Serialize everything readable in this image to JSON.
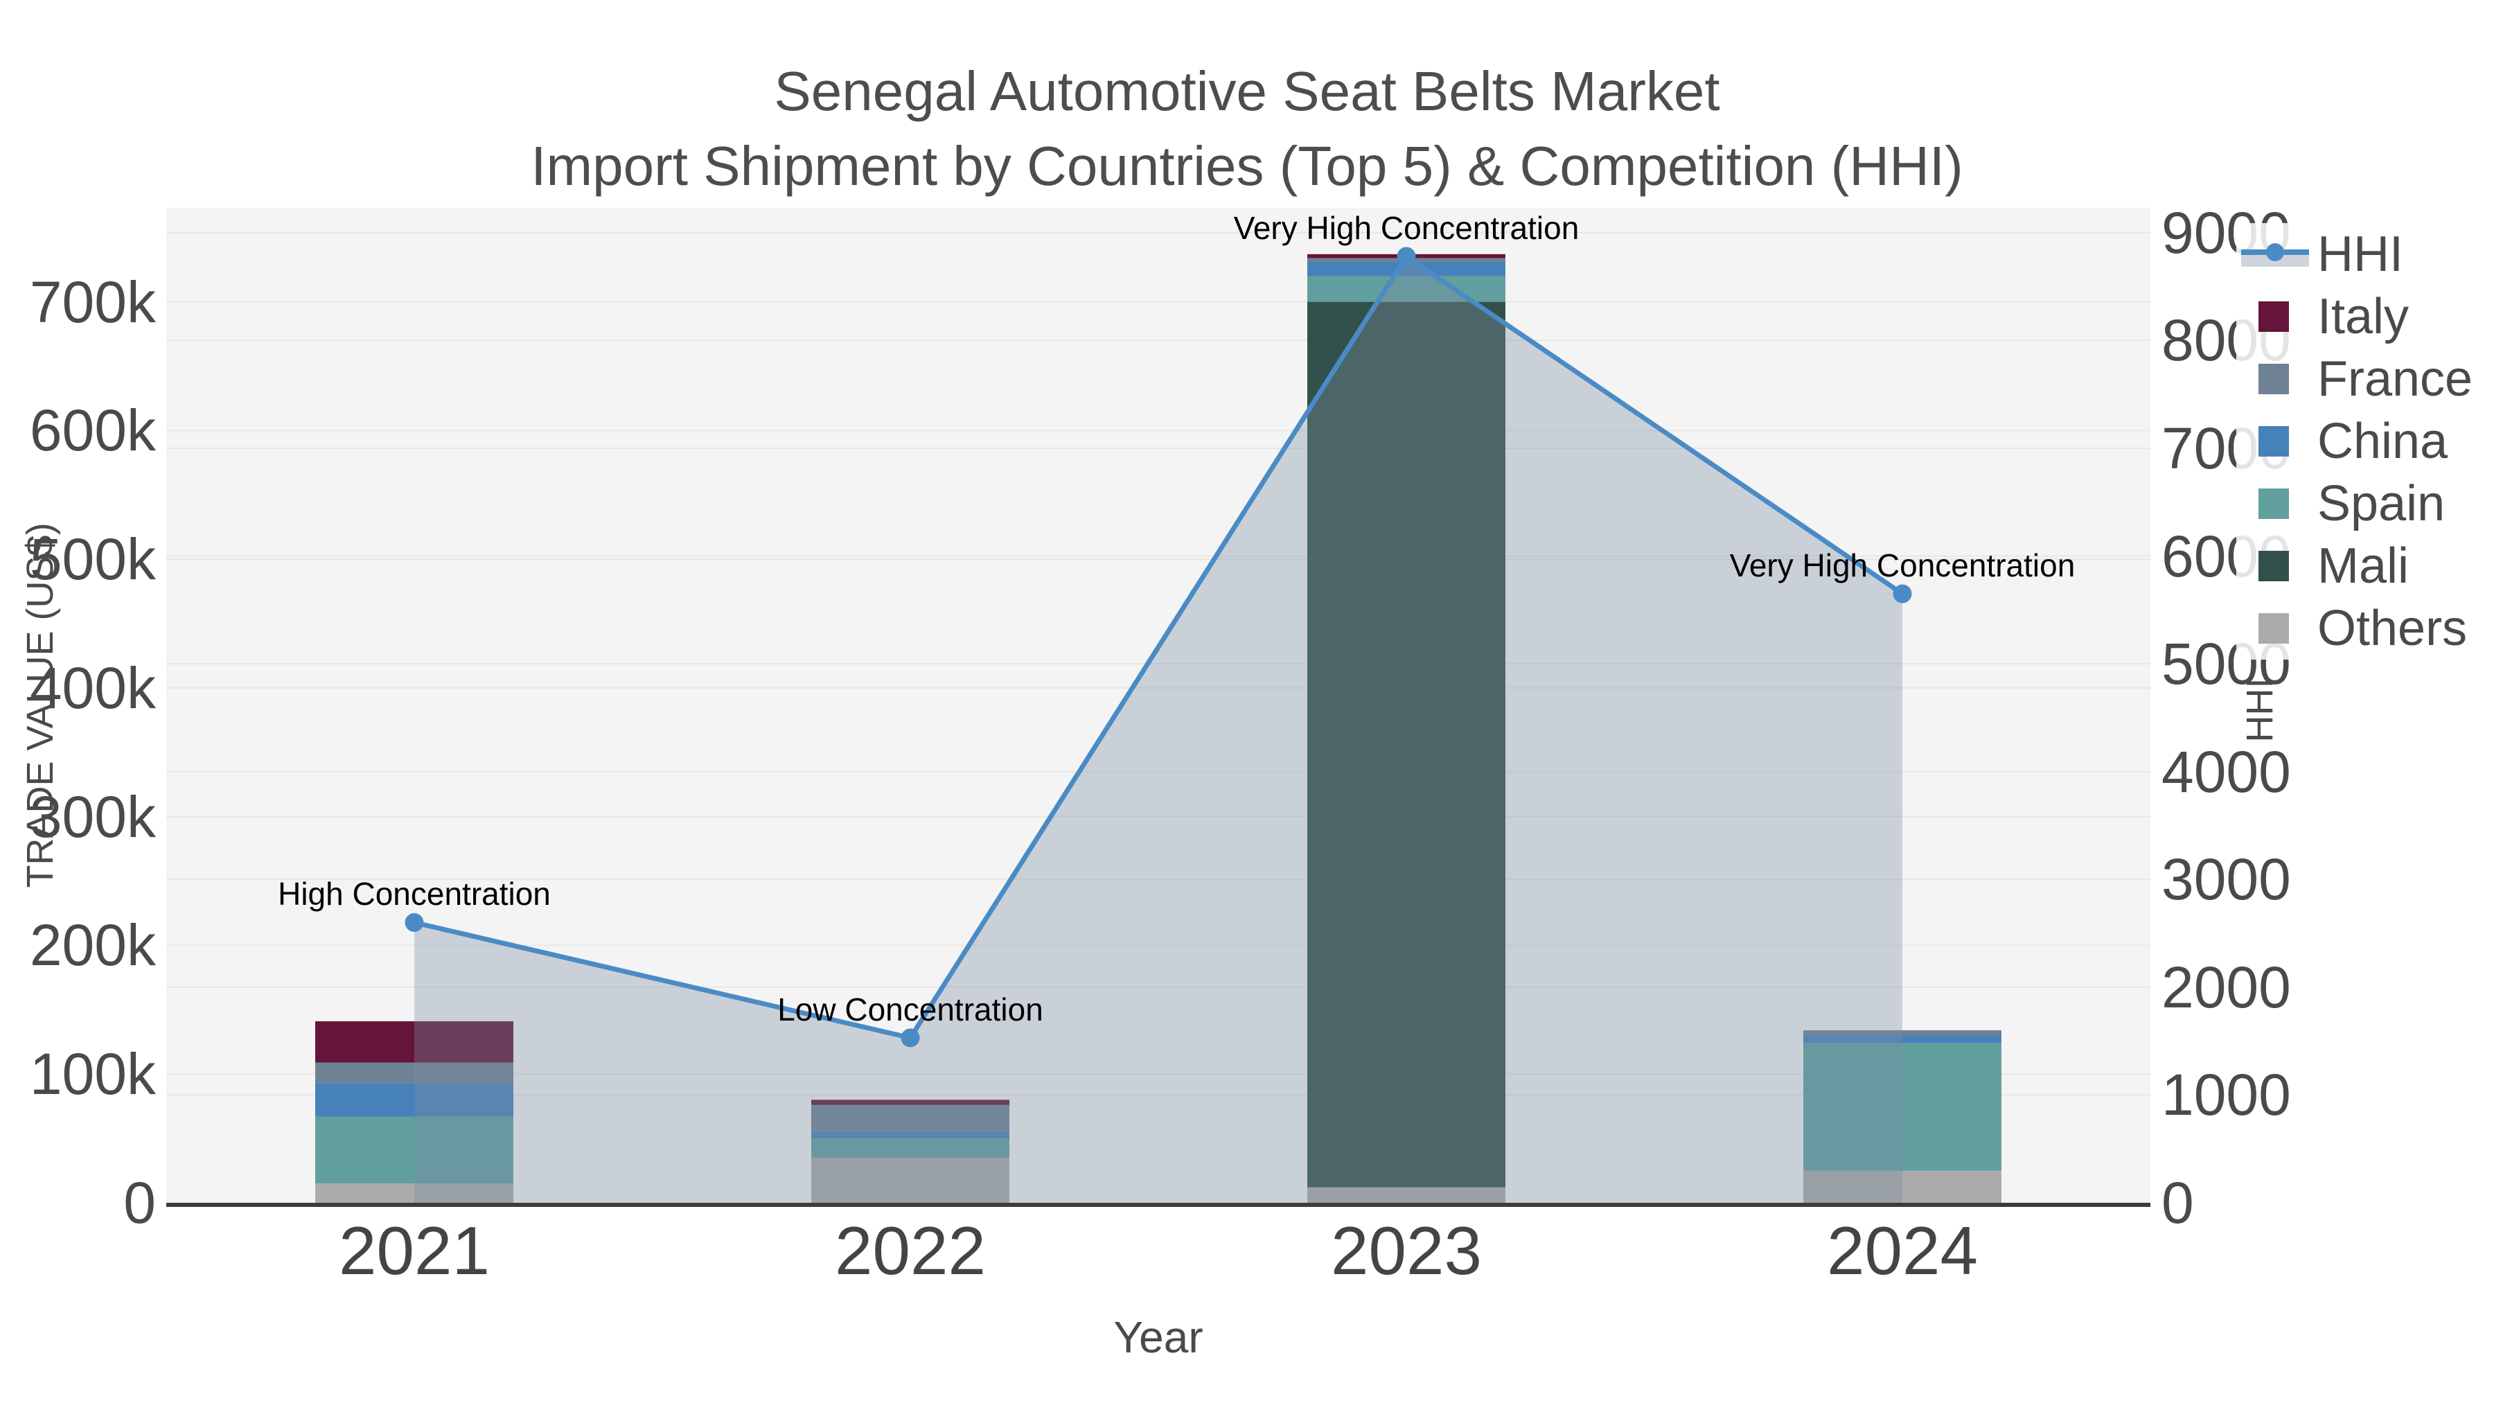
{
  "title": {
    "line1": "Senegal Automotive Seat Belts Market",
    "line2": "Import Shipment by Countries (Top 5) & Competition (HHI)"
  },
  "chart_data": {
    "type": "bar",
    "subtype": "stacked-bars-with-line-area-overlay",
    "categories": [
      "2021",
      "2022",
      "2023",
      "2024"
    ],
    "series": [
      {
        "name": "Italy",
        "color": "#65143A",
        "values": [
          32000,
          4000,
          3000,
          0
        ]
      },
      {
        "name": "France",
        "color": "#6E8294",
        "values": [
          16000,
          21000,
          3000,
          4000
        ]
      },
      {
        "name": "China",
        "color": "#4682B9",
        "values": [
          26000,
          5000,
          11000,
          6000
        ]
      },
      {
        "name": "Spain",
        "color": "#629F9F",
        "values": [
          52000,
          15000,
          20000,
          99000
        ]
      },
      {
        "name": "Mali",
        "color": "#32504B",
        "values": [
          0,
          0,
          688000,
          0
        ]
      },
      {
        "name": "Others",
        "color": "#ABABAB",
        "values": [
          15000,
          35000,
          12000,
          25000
        ]
      }
    ],
    "stack_order_bottom_to_top": [
      "Others",
      "Mali",
      "Spain",
      "China",
      "France",
      "Italy"
    ],
    "line_series": {
      "name": "HHI",
      "axis": "right",
      "color": "#4A8BC5",
      "area_fill": "rgba(122,139,164,0.35)",
      "values": [
        2600,
        1530,
        8780,
        5650
      ]
    },
    "annotations": [
      {
        "category": "2021",
        "text": "High Concentration"
      },
      {
        "category": "2022",
        "text": "Low Concentration"
      },
      {
        "category": "2023",
        "text": "Very High Concentration"
      },
      {
        "category": "2024",
        "text": "Very High Concentration"
      }
    ],
    "x_axis": {
      "title": "Year"
    },
    "left_axis": {
      "title": "TRADE VALUE (US$)",
      "range": [
        0,
        773000
      ],
      "ticks": [
        {
          "value": 0,
          "label": "0"
        },
        {
          "value": 100000,
          "label": "100k"
        },
        {
          "value": 200000,
          "label": "200k"
        },
        {
          "value": 300000,
          "label": "300k"
        },
        {
          "value": 400000,
          "label": "400k"
        },
        {
          "value": 500000,
          "label": "500k"
        },
        {
          "value": 600000,
          "label": "600k"
        },
        {
          "value": 700000,
          "label": "700k"
        }
      ]
    },
    "right_axis": {
      "title": "HHI",
      "range": [
        0,
        9230
      ],
      "ticks": [
        {
          "value": 0,
          "label": "0"
        },
        {
          "value": 1000,
          "label": "1000"
        },
        {
          "value": 2000,
          "label": "2000"
        },
        {
          "value": 3000,
          "label": "3000"
        },
        {
          "value": 4000,
          "label": "4000"
        },
        {
          "value": 5000,
          "label": "5000"
        },
        {
          "value": 6000,
          "label": "6000"
        },
        {
          "value": 7000,
          "label": "7000"
        },
        {
          "value": 8000,
          "label": "8000"
        },
        {
          "value": 9000,
          "label": "9000"
        }
      ]
    },
    "legend": {
      "items": [
        "HHI",
        "Italy",
        "France",
        "China",
        "Spain",
        "Mali",
        "Others"
      ],
      "position": "outside-right-top"
    },
    "grid": true,
    "colors": {
      "plot_background": "#F4F4F4",
      "gridline": "#E7E7E7",
      "axis_line": "#3C3C3C",
      "tick_text": "#4A4A4A",
      "title_text": "#4D4D4D",
      "annotation_text": "#000000"
    }
  }
}
